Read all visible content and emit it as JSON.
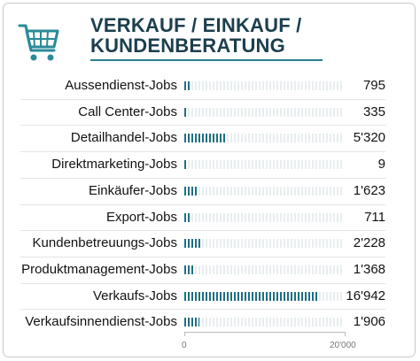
{
  "header": {
    "title_line1": "VERKAUF / EINKAUF /",
    "title_line2": "KUNDENBERATUNG",
    "icon": "shopping-cart-icon"
  },
  "colors": {
    "accent": "#1e6f82",
    "title": "#1c3f4f",
    "track": "#e8eef0"
  },
  "chart_data": {
    "type": "bar",
    "categories": [
      "Aussendienst-Jobs",
      "Call Center-Jobs",
      "Detailhandel-Jobs",
      "Direktmarketing-Jobs",
      "Einkäufer-Jobs",
      "Export-Jobs",
      "Kundenbetreuungs-Jobs",
      "Produktmanagement-Jobs",
      "Verkaufs-Jobs",
      "Verkaufsinnendienst-Jobs"
    ],
    "values": [
      795,
      335,
      5320,
      9,
      1623,
      711,
      2228,
      1368,
      16942,
      1906
    ],
    "value_labels": [
      "795",
      "335",
      "5'320",
      "9",
      "1'623",
      "711",
      "2'228",
      "1'368",
      "16'942",
      "1'906"
    ],
    "xlim": [
      0,
      20000
    ],
    "tick_labels": [
      "0",
      "20'000"
    ]
  }
}
